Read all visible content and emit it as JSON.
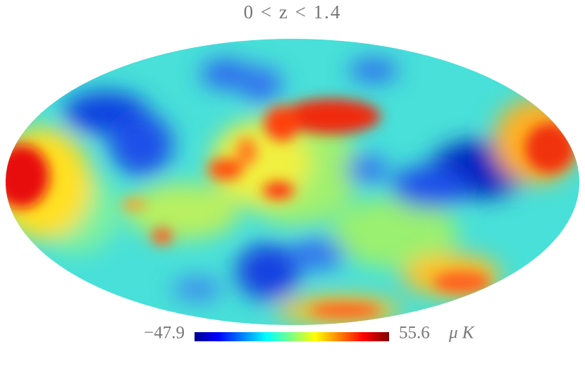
{
  "title": "0 < z < 1.4",
  "colorbar": {
    "min": {
      "value": -47.9,
      "label": "−47.9"
    },
    "max": 55.6,
    "unit": "μ K"
  }
}
